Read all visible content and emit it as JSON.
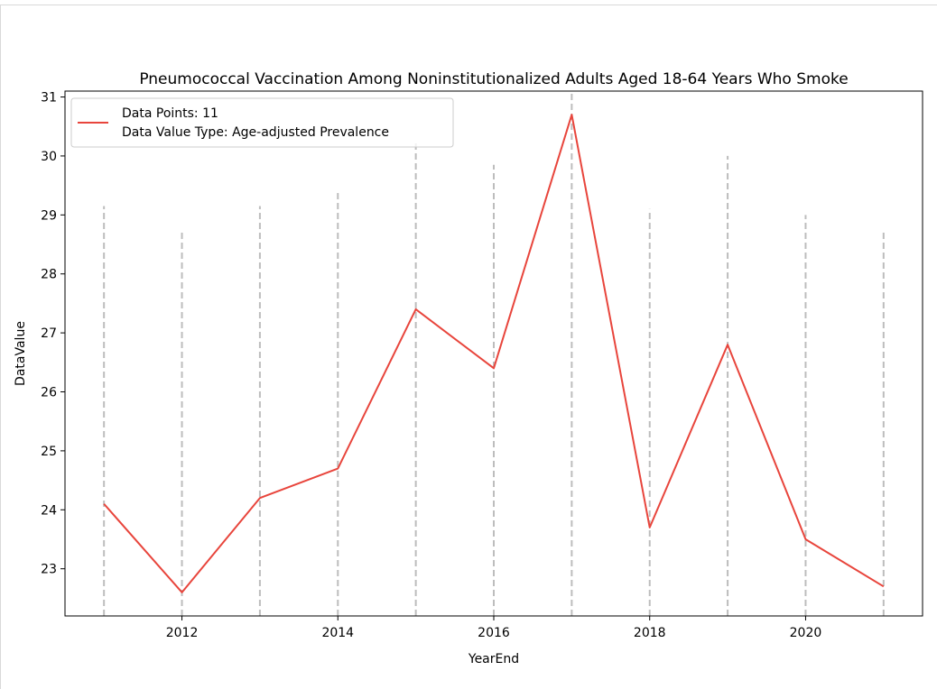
{
  "chart_data": {
    "type": "line",
    "title": "Pneumococcal Vaccination Among Noninstitutionalized Adults Aged 18-64 Years Who Smoke",
    "xlabel": "YearEnd",
    "ylabel": "DataValue",
    "x": [
      2011,
      2012,
      2013,
      2014,
      2015,
      2016,
      2017,
      2018,
      2019,
      2020,
      2021
    ],
    "series": [
      {
        "values": [
          24.1,
          22.6,
          24.2,
          24.7,
          27.4,
          26.4,
          30.7,
          23.7,
          26.8,
          23.5,
          22.7
        ],
        "color": "#e8453c"
      }
    ],
    "vline_tops": [
      29.15,
      28.75,
      29.15,
      29.4,
      30.25,
      29.85,
      31.15,
      29.1,
      30.0,
      29.0,
      28.75
    ],
    "vline_color": "#bdbdbd",
    "xticks": [
      "2012",
      "2014",
      "2016",
      "2018",
      "2020"
    ],
    "xtick_values": [
      2012,
      2014,
      2016,
      2018,
      2020
    ],
    "yticks": [
      "23",
      "24",
      "25",
      "26",
      "27",
      "28",
      "29",
      "30",
      "31"
    ],
    "ytick_values": [
      23,
      24,
      25,
      26,
      27,
      28,
      29,
      30,
      31
    ],
    "xlim": [
      2010.5,
      2021.5
    ],
    "ylim": [
      22.2,
      31.1
    ],
    "grid": false,
    "legend_position": "top-left",
    "legend": [
      "Data Points: 11",
      "Data Value Type: Age-adjusted Prevalence"
    ]
  }
}
